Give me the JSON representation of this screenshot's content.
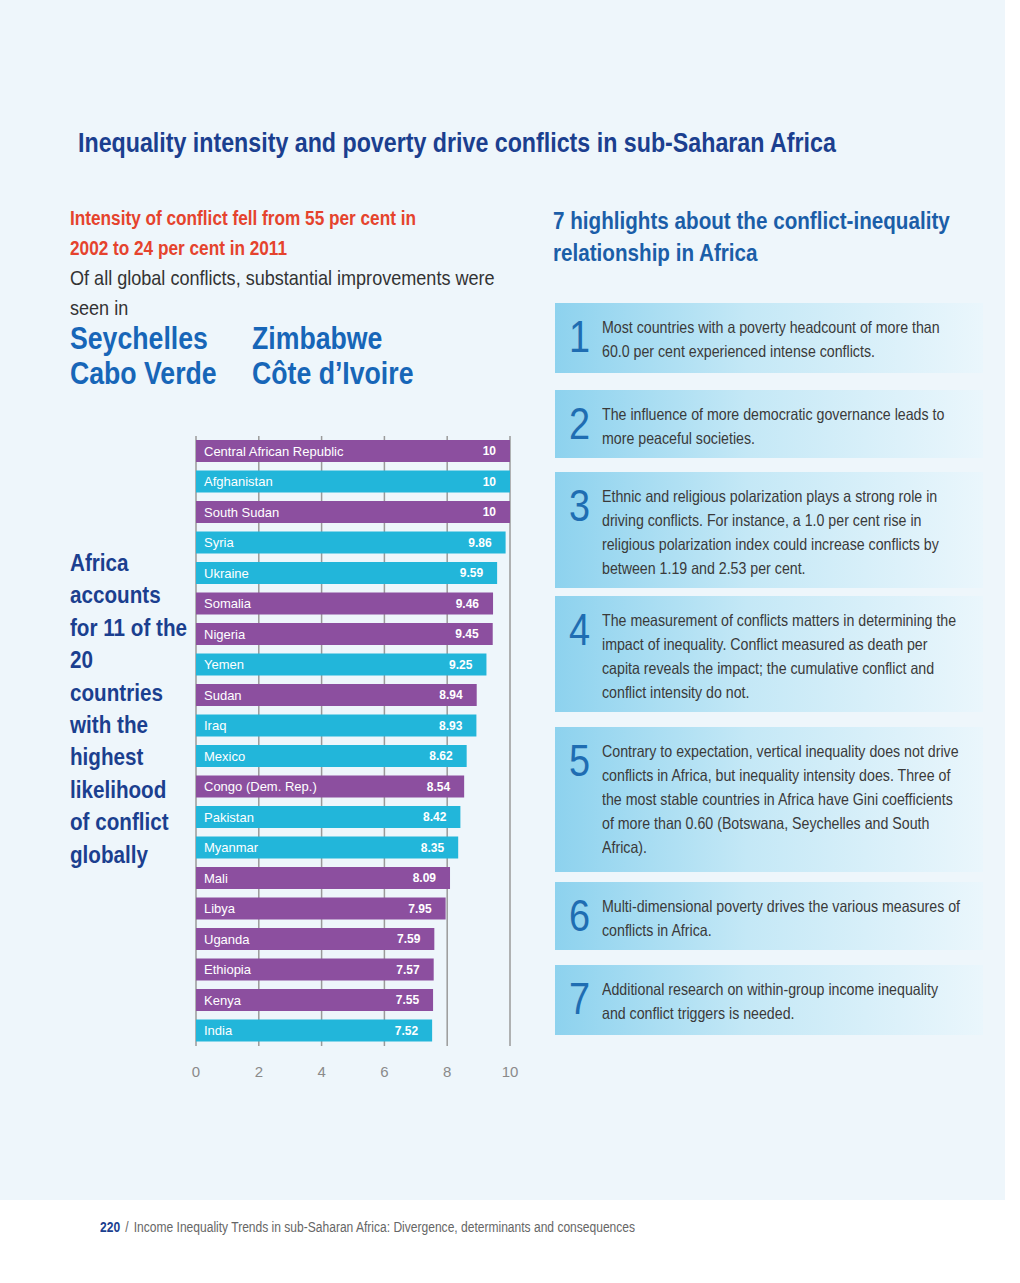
{
  "title": "Inequality intensity and poverty drive conflicts in sub-Saharan Africa",
  "intro": {
    "headline": "Intensity of conflict fell from 55 per cent in 2002 to 24 per cent in 2011",
    "text": "Of all global conflicts, substantial improvements were seen in",
    "places": [
      "Seychelles",
      "Zimbabwe",
      "Cabo Verde",
      "Côte d’Ivoire"
    ]
  },
  "chart_data": {
    "type": "bar",
    "orientation": "horizontal",
    "annotations": [
      "Africa accounts for 11 of the 20 countries with the highest likelihood of conflict globally"
    ],
    "categories": [
      "Central African Republic",
      "Afghanistan",
      "South Sudan",
      "Syria",
      "Ukraine",
      "Somalia",
      "Nigeria",
      "Yemen",
      "Sudan",
      "Iraq",
      "Mexico",
      "Congo (Dem. Rep.)",
      "Pakistan",
      "Myanmar",
      "Mali",
      "Libya",
      "Uganda",
      "Ethiopia",
      "Kenya",
      "India"
    ],
    "values": [
      10,
      10,
      10,
      9.86,
      9.59,
      9.46,
      9.45,
      9.25,
      8.94,
      8.93,
      8.62,
      8.54,
      8.42,
      8.35,
      8.09,
      7.95,
      7.59,
      7.57,
      7.55,
      7.52
    ],
    "colors": [
      "#8c4f9f",
      "#22b6da",
      "#8c4f9f",
      "#22b6da",
      "#22b6da",
      "#8c4f9f",
      "#8c4f9f",
      "#22b6da",
      "#8c4f9f",
      "#22b6da",
      "#22b6da",
      "#8c4f9f",
      "#22b6da",
      "#22b6da",
      "#8c4f9f",
      "#8c4f9f",
      "#8c4f9f",
      "#8c4f9f",
      "#8c4f9f",
      "#22b6da"
    ],
    "xlim": [
      0,
      10
    ],
    "xticks": [
      0,
      2,
      4,
      6,
      8,
      10
    ],
    "grid": true,
    "data_labels": true,
    "tick_labels": "x"
  },
  "highlights": {
    "heading": "7 highlights about the conflict-inequality relationship in Africa",
    "items": [
      {
        "number": 1,
        "text": "Most countries with a poverty headcount of more than 60.0 per cent experienced intense conflicts."
      },
      {
        "number": 2,
        "text": "The influence of more democratic governance leads to more peaceful societies."
      },
      {
        "number": 3,
        "text": "Ethnic and religious polarization plays a strong role in driving conflicts. For instance, a 1.0 per cent rise in religious polarization index could increase conflicts by between 1.19 and 2.53 per cent."
      },
      {
        "number": 4,
        "text": "The measurement of conflicts matters in determining the impact of inequality. Conflict measured as death per capita reveals the impact; the cumulative conflict and conflict intensity do not."
      },
      {
        "number": 5,
        "text": "Contrary to expectation, vertical inequality does not drive conflicts in Africa, but inequality intensity does. Three of the most stable countries in Africa have Gini coefficients of more than 0.60 (Botswana, Seychelles and South Africa)."
      },
      {
        "number": 6,
        "text": "Multi-dimensional poverty drives the various measures of conflicts in Africa."
      },
      {
        "number": 7,
        "text": "Additional research on within-group income inequality and conflict triggers is needed."
      }
    ]
  },
  "footer": {
    "page": 220,
    "separator": "/",
    "text": "Income Inequality Trends in sub-Saharan Africa: Divergence, determinants and consequences"
  }
}
